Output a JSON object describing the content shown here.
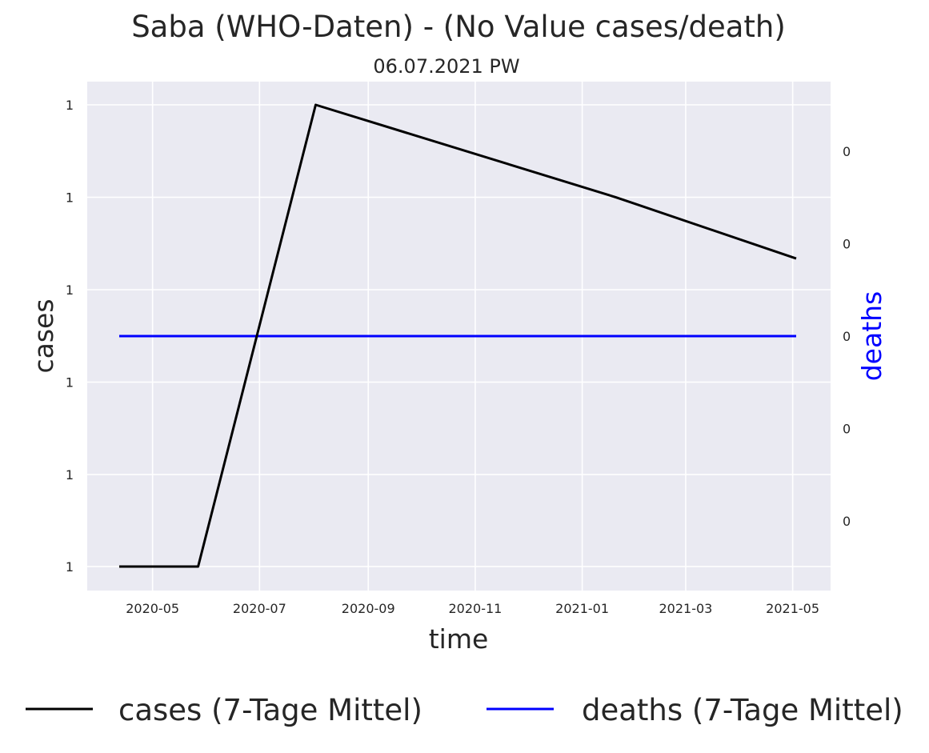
{
  "chart_data": {
    "type": "line",
    "title": "Saba (WHO-Daten) - (No Value cases/death)",
    "subtitle": "06.07.2021 PW",
    "xlabel": "time",
    "ylabel_left": "cases",
    "ylabel_right": "deaths",
    "x_ticks": [
      "2020-05",
      "2020-07",
      "2020-09",
      "2020-11",
      "2021-01",
      "2021-03",
      "2021-05"
    ],
    "y_left_ticks": [
      "1",
      "1",
      "1",
      "1",
      "1",
      "1"
    ],
    "y_right_ticks": [
      "0",
      "0",
      "0",
      "0",
      "0"
    ],
    "grid": true,
    "legend_position": "bottom",
    "colors": {
      "background": "#eaeaf2",
      "grid": "#ffffff",
      "cases": "#000000",
      "deaths": "#0000ff"
    },
    "series": [
      {
        "name": "cases (7-Tage Mittel)",
        "axis": "left",
        "color": "#000000",
        "points": [
          {
            "x": "2020-04-12",
            "y": 0
          },
          {
            "x": "2020-05-27",
            "y": 0
          },
          {
            "x": "2020-08-02",
            "y": 1
          },
          {
            "x": "2021-01-20",
            "y": 0.8
          },
          {
            "x": "2021-05-03",
            "y": 0.667
          }
        ]
      },
      {
        "name": "deaths (7-Tage Mittel)",
        "axis": "right",
        "color": "#0000ff",
        "points": [
          {
            "x": "2020-04-12",
            "y": 0
          },
          {
            "x": "2021-05-03",
            "y": 0
          }
        ]
      }
    ]
  }
}
